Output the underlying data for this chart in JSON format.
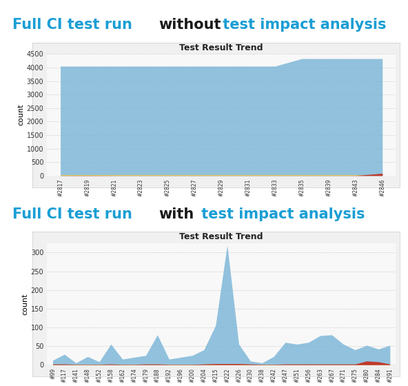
{
  "chart1": {
    "title": "Test Result Trend",
    "ylabel": "count",
    "xlabels": [
      "#2817",
      "#2819",
      "#2821",
      "#2823",
      "#2825",
      "#2827",
      "#2829",
      "#2831",
      "#2833",
      "#2835",
      "#2839",
      "#2843",
      "#2846"
    ],
    "passed": [
      4050,
      4050,
      4050,
      4050,
      4050,
      4050,
      4050,
      4050,
      4050,
      4330,
      4330,
      4330,
      4330
    ],
    "failed": [
      5,
      8,
      5,
      5,
      5,
      5,
      5,
      5,
      5,
      5,
      5,
      5,
      85
    ],
    "skipped": [
      30,
      30,
      30,
      30,
      30,
      30,
      30,
      30,
      30,
      30,
      30,
      30,
      30
    ],
    "ylim": [
      0,
      4500
    ],
    "yticks": [
      0,
      500,
      1000,
      1500,
      2000,
      2500,
      3000,
      3500,
      4000,
      4500
    ],
    "color_passed": "#7ab5d8",
    "color_failed": "#c0392b",
    "color_skipped": "#e8c84a",
    "bg_color": "#ffffff",
    "panel_bg": "#f8f8f8"
  },
  "chart2": {
    "title": "Test Result Trend",
    "ylabel": "count",
    "xlabels": [
      "#99",
      "#117",
      "#141",
      "#148",
      "#152",
      "#158",
      "#162",
      "#174",
      "#179",
      "#188",
      "#192",
      "#196",
      "#200",
      "#204",
      "#215",
      "#222",
      "#226",
      "#230",
      "#238",
      "#242",
      "#247",
      "#251",
      "#256",
      "#263",
      "#267",
      "#271",
      "#275",
      "#280",
      "#284",
      "#291"
    ],
    "passed": [
      12,
      28,
      5,
      22,
      8,
      55,
      15,
      20,
      25,
      80,
      15,
      20,
      25,
      40,
      105,
      320,
      55,
      10,
      5,
      22,
      60,
      55,
      60,
      78,
      80,
      55,
      40,
      52,
      42,
      52
    ],
    "failed": [
      2,
      2,
      1,
      1,
      1,
      2,
      1,
      1,
      2,
      2,
      1,
      1,
      1,
      2,
      3,
      3,
      3,
      2,
      1,
      1,
      2,
      2,
      2,
      2,
      2,
      2,
      2,
      10,
      8,
      2
    ],
    "skipped": [
      1,
      1,
      1,
      1,
      1,
      1,
      1,
      1,
      1,
      1,
      1,
      1,
      1,
      1,
      2,
      2,
      2,
      1,
      1,
      1,
      1,
      1,
      1,
      1,
      1,
      1,
      1,
      5,
      3,
      1
    ],
    "ylim": [
      0,
      325
    ],
    "yticks": [
      0,
      50,
      100,
      150,
      200,
      250,
      300
    ],
    "color_passed": "#7ab5d8",
    "color_failed": "#c0392b",
    "color_skipped": "#e8c84a",
    "bg_color": "#ffffff",
    "panel_bg": "#f8f8f8"
  },
  "title1_text": "Full CI test run ",
  "title1_bold": "without",
  "title1_rest": " test impact analysis",
  "title2_text": "Full CI test run ",
  "title2_bold": "with",
  "title2_rest": " test impact analysis",
  "title_color": "#1a9ed4",
  "title_bold_color": "#1a1a1a",
  "title_fontsize": 15,
  "fig_bg": "#ffffff"
}
